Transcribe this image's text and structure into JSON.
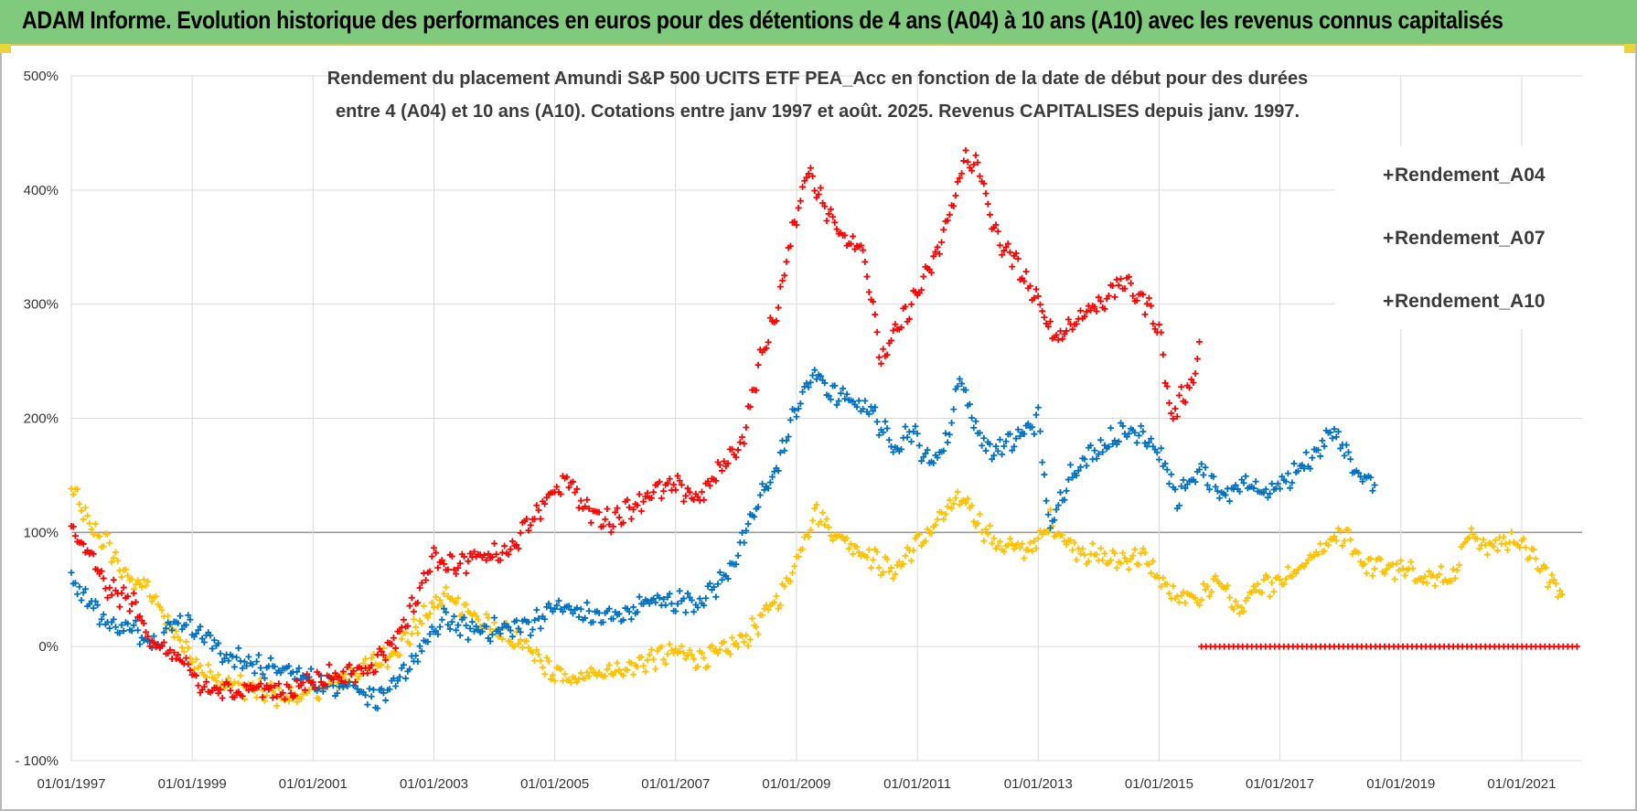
{
  "banner": {
    "title": "ADAM Informe. Evolution historique des performances en euros pour des détentions de 4 ans (A04) à 10 ans (A10) avec les revenus connus capitalisés"
  },
  "colors": {
    "banner_bg": "#7fca7c",
    "A04": "#ffc000",
    "A07": "#0070c0",
    "A10": "#ff0000"
  },
  "chart_data": {
    "type": "scatter",
    "title": [
      "Rendement du placement Amundi S&P 500 UCITS ETF PEA_Acc en fonction de la date de début pour des durées",
      "entre 4 (A04) et 10 ans (A10).  Cotations entre janv 1997 et août. 2025. Revenus CAPITALISES depuis janv. 1997."
    ],
    "xlabel": "",
    "ylabel": "",
    "x_range": [
      "01/01/1997",
      "01/01/2022"
    ],
    "ylim": [
      -100,
      500
    ],
    "x_ticks": [
      "01/01/1997",
      "01/01/1999",
      "01/01/2001",
      "01/01/2003",
      "01/01/2005",
      "01/01/2007",
      "01/01/2009",
      "01/01/2011",
      "01/01/2013",
      "01/01/2015",
      "01/01/2017",
      "01/01/2019",
      "01/01/2021"
    ],
    "y_ticks": [
      "- 100%",
      "0%",
      "100%",
      "200%",
      "300%",
      "400%",
      "500%"
    ],
    "y_tick_values": [
      -100,
      0,
      100,
      200,
      300,
      400,
      500
    ],
    "grid": true,
    "legend_position": "right",
    "marker": "+",
    "series": [
      {
        "name": "Rendement_A04",
        "color": "#ffc000",
        "points": [
          [
            1997.0,
            140
          ],
          [
            1997.3,
            105
          ],
          [
            1997.6,
            90
          ],
          [
            1997.9,
            60
          ],
          [
            1998.2,
            55
          ],
          [
            1998.5,
            30
          ],
          [
            1998.8,
            5
          ],
          [
            1999.1,
            -15
          ],
          [
            1999.4,
            -30
          ],
          [
            1999.8,
            -35
          ],
          [
            2000.2,
            -40
          ],
          [
            2000.6,
            -45
          ],
          [
            2001.0,
            -40
          ],
          [
            2001.4,
            -30
          ],
          [
            2001.8,
            -20
          ],
          [
            2002.2,
            -10
          ],
          [
            2002.6,
            10
          ],
          [
            2002.9,
            30
          ],
          [
            2003.2,
            45
          ],
          [
            2003.5,
            35
          ],
          [
            2003.8,
            20
          ],
          [
            2004.2,
            10
          ],
          [
            2004.6,
            -5
          ],
          [
            2005.0,
            -25
          ],
          [
            2005.4,
            -30
          ],
          [
            2005.8,
            -20
          ],
          [
            2006.2,
            -20
          ],
          [
            2006.6,
            -10
          ],
          [
            2007.0,
            -5
          ],
          [
            2007.4,
            -10
          ],
          [
            2007.8,
            -5
          ],
          [
            2008.2,
            10
          ],
          [
            2008.5,
            30
          ],
          [
            2008.8,
            50
          ],
          [
            2009.1,
            90
          ],
          [
            2009.3,
            120
          ],
          [
            2009.6,
            100
          ],
          [
            2009.9,
            90
          ],
          [
            2010.2,
            80
          ],
          [
            2010.6,
            65
          ],
          [
            2010.9,
            85
          ],
          [
            2011.2,
            100
          ],
          [
            2011.5,
            120
          ],
          [
            2011.8,
            130
          ],
          [
            2012.0,
            110
          ],
          [
            2012.3,
            90
          ],
          [
            2012.7,
            85
          ],
          [
            2013.0,
            90
          ],
          [
            2013.2,
            110
          ],
          [
            2013.5,
            90
          ],
          [
            2013.9,
            80
          ],
          [
            2014.3,
            75
          ],
          [
            2014.7,
            80
          ],
          [
            2015.0,
            60
          ],
          [
            2015.3,
            40
          ],
          [
            2015.7,
            45
          ],
          [
            2016.0,
            60
          ],
          [
            2016.3,
            30
          ],
          [
            2016.6,
            50
          ],
          [
            2017.0,
            55
          ],
          [
            2017.4,
            70
          ],
          [
            2017.8,
            90
          ],
          [
            2018.1,
            100
          ],
          [
            2018.4,
            70
          ],
          [
            2018.8,
            70
          ],
          [
            2019.1,
            65
          ],
          [
            2019.5,
            60
          ],
          [
            2019.9,
            60
          ],
          [
            2020.1,
            95
          ],
          [
            2020.5,
            90
          ],
          [
            2020.9,
            95
          ],
          [
            2021.2,
            80
          ],
          [
            2021.5,
            55
          ],
          [
            2021.7,
            50
          ]
        ]
      },
      {
        "name": "Rendement_A07",
        "color": "#0070c0",
        "points": [
          [
            1997.0,
            60
          ],
          [
            1997.3,
            40
          ],
          [
            1997.6,
            20
          ],
          [
            1998.0,
            15
          ],
          [
            1998.4,
            5
          ],
          [
            1998.8,
            25
          ],
          [
            1999.2,
            10
          ],
          [
            1999.6,
            -10
          ],
          [
            2000.0,
            -15
          ],
          [
            2000.4,
            -20
          ],
          [
            2000.8,
            -25
          ],
          [
            2001.2,
            -35
          ],
          [
            2001.6,
            -30
          ],
          [
            2002.0,
            -45
          ],
          [
            2002.3,
            -40
          ],
          [
            2002.6,
            -15
          ],
          [
            2002.9,
            5
          ],
          [
            2003.2,
            25
          ],
          [
            2003.5,
            15
          ],
          [
            2003.8,
            15
          ],
          [
            2004.2,
            15
          ],
          [
            2004.6,
            20
          ],
          [
            2005.0,
            35
          ],
          [
            2005.4,
            30
          ],
          [
            2005.8,
            25
          ],
          [
            2006.2,
            30
          ],
          [
            2006.6,
            40
          ],
          [
            2007.0,
            40
          ],
          [
            2007.4,
            40
          ],
          [
            2007.8,
            60
          ],
          [
            2008.1,
            90
          ],
          [
            2008.4,
            130
          ],
          [
            2008.7,
            160
          ],
          [
            2009.0,
            210
          ],
          [
            2009.3,
            240
          ],
          [
            2009.6,
            220
          ],
          [
            2009.9,
            215
          ],
          [
            2010.2,
            210
          ],
          [
            2010.6,
            175
          ],
          [
            2010.9,
            190
          ],
          [
            2011.2,
            160
          ],
          [
            2011.5,
            180
          ],
          [
            2011.7,
            240
          ],
          [
            2011.9,
            200
          ],
          [
            2012.2,
            170
          ],
          [
            2012.6,
            180
          ],
          [
            2013.0,
            200
          ],
          [
            2013.2,
            100
          ],
          [
            2013.5,
            150
          ],
          [
            2013.9,
            170
          ],
          [
            2014.3,
            185
          ],
          [
            2014.7,
            190
          ],
          [
            2015.0,
            170
          ],
          [
            2015.3,
            130
          ],
          [
            2015.7,
            155
          ],
          [
            2016.0,
            130
          ],
          [
            2016.4,
            145
          ],
          [
            2016.8,
            135
          ],
          [
            2017.2,
            150
          ],
          [
            2017.6,
            170
          ],
          [
            2017.9,
            190
          ],
          [
            2018.1,
            170
          ],
          [
            2018.3,
            145
          ],
          [
            2018.6,
            148
          ]
        ]
      },
      {
        "name": "Rendement_A10",
        "color": "#ff0000",
        "points": [
          [
            1997.0,
            100
          ],
          [
            1997.3,
            80
          ],
          [
            1997.6,
            50
          ],
          [
            1998.0,
            40
          ],
          [
            1998.4,
            0
          ],
          [
            1998.8,
            -10
          ],
          [
            1999.1,
            -35
          ],
          [
            1999.5,
            -40
          ],
          [
            2000.0,
            -35
          ],
          [
            2000.4,
            -40
          ],
          [
            2000.8,
            -35
          ],
          [
            2001.2,
            -25
          ],
          [
            2001.6,
            -25
          ],
          [
            2002.0,
            -15
          ],
          [
            2002.4,
            10
          ],
          [
            2002.7,
            40
          ],
          [
            2003.0,
            80
          ],
          [
            2003.4,
            70
          ],
          [
            2003.8,
            80
          ],
          [
            2004.2,
            80
          ],
          [
            2004.6,
            110
          ],
          [
            2004.9,
            130
          ],
          [
            2005.2,
            150
          ],
          [
            2005.5,
            120
          ],
          [
            2005.9,
            110
          ],
          [
            2006.2,
            120
          ],
          [
            2006.6,
            135
          ],
          [
            2007.0,
            140
          ],
          [
            2007.4,
            130
          ],
          [
            2007.8,
            160
          ],
          [
            2008.1,
            180
          ],
          [
            2008.4,
            250
          ],
          [
            2008.7,
            300
          ],
          [
            2009.0,
            380
          ],
          [
            2009.2,
            420
          ],
          [
            2009.5,
            380
          ],
          [
            2009.8,
            360
          ],
          [
            2010.1,
            350
          ],
          [
            2010.4,
            250
          ],
          [
            2010.7,
            280
          ],
          [
            2011.0,
            310
          ],
          [
            2011.3,
            340
          ],
          [
            2011.6,
            390
          ],
          [
            2011.8,
            430
          ],
          [
            2012.0,
            420
          ],
          [
            2012.3,
            360
          ],
          [
            2012.7,
            330
          ],
          [
            2013.0,
            300
          ],
          [
            2013.3,
            270
          ],
          [
            2013.7,
            290
          ],
          [
            2014.0,
            300
          ],
          [
            2014.4,
            320
          ],
          [
            2014.8,
            300
          ],
          [
            2015.0,
            280
          ],
          [
            2015.2,
            200
          ],
          [
            2015.4,
            220
          ],
          [
            2015.6,
            240
          ],
          [
            2015.7,
            280
          ]
        ]
      },
      {
        "name": "",
        "color": "#ff0000",
        "points": [
          [
            2015.7,
            0
          ],
          [
            2021.99,
            0
          ]
        ]
      }
    ]
  }
}
